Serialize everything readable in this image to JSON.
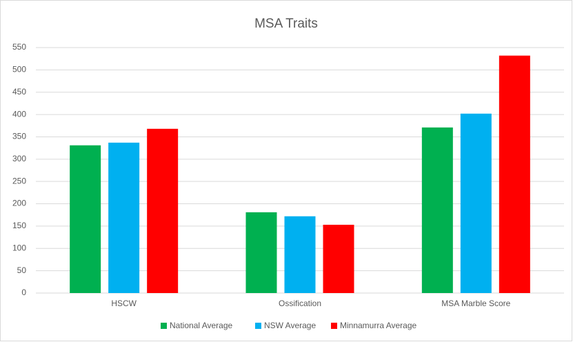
{
  "chart_data": {
    "type": "bar",
    "title": "MSA Traits",
    "categories": [
      "HSCW",
      "Ossification",
      "MSA Marble Score"
    ],
    "series": [
      {
        "name": "National Average",
        "color": "#00b050",
        "values": [
          331,
          181,
          371
        ]
      },
      {
        "name": "NSW Average",
        "color": "#00b0f0",
        "values": [
          337,
          172,
          402
        ]
      },
      {
        "name": "Minnamurra Average",
        "color": "#ff0000",
        "values": [
          368,
          153,
          532
        ]
      }
    ],
    "ylim": [
      0,
      550
    ],
    "yticks": [
      0,
      50,
      100,
      150,
      200,
      250,
      300,
      350,
      400,
      450,
      500,
      550
    ],
    "grid": true,
    "legend": "bottom"
  }
}
